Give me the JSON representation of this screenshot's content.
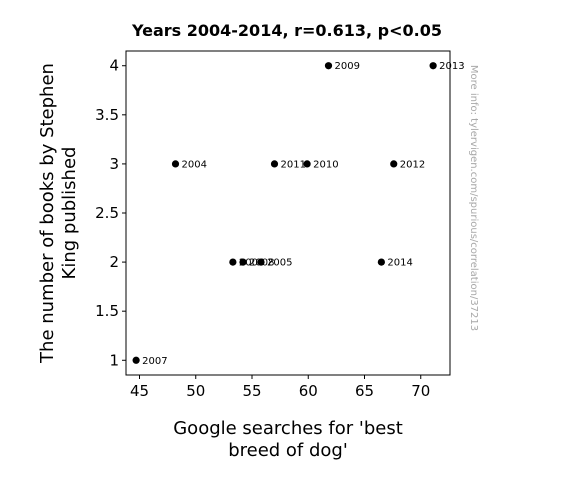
{
  "chart_data": {
    "type": "scatter",
    "title": "Years 2004-2014, r=0.613, p<0.05",
    "xlabel_lines": [
      "Google searches for 'best",
      "breed of dog'"
    ],
    "ylabel_lines": [
      "The number of books by Stephen",
      "King published"
    ],
    "xlim": [
      43.8,
      72.6
    ],
    "ylim": [
      0.85,
      4.15
    ],
    "xticks": [
      45,
      50,
      55,
      60,
      65,
      70
    ],
    "yticks": [
      1,
      1.5,
      2,
      2.5,
      3,
      3.5,
      4
    ],
    "xtick_labels": [
      "45",
      "50",
      "55",
      "60",
      "65",
      "70"
    ],
    "ytick_labels": [
      "1",
      "1.5",
      "2",
      "2.5",
      "3",
      "3.5",
      "4"
    ],
    "grid": false,
    "legend": "none",
    "marker_color": "#000000",
    "points": [
      {
        "label": "2004",
        "x": 48.2,
        "y": 3
      },
      {
        "label": "2005",
        "x": 55.8,
        "y": 2
      },
      {
        "label": "2006",
        "x": 53.3,
        "y": 2
      },
      {
        "label": "2007",
        "x": 44.7,
        "y": 1
      },
      {
        "label": "2008",
        "x": 54.2,
        "y": 2
      },
      {
        "label": "2009",
        "x": 61.8,
        "y": 4
      },
      {
        "label": "2010",
        "x": 59.9,
        "y": 3
      },
      {
        "label": "2011",
        "x": 57.0,
        "y": 3
      },
      {
        "label": "2012",
        "x": 67.6,
        "y": 3
      },
      {
        "label": "2013",
        "x": 71.1,
        "y": 4
      },
      {
        "label": "2014",
        "x": 66.5,
        "y": 2
      }
    ]
  },
  "watermark": "More info: tylervigen.com/spurious/correlation/37213"
}
